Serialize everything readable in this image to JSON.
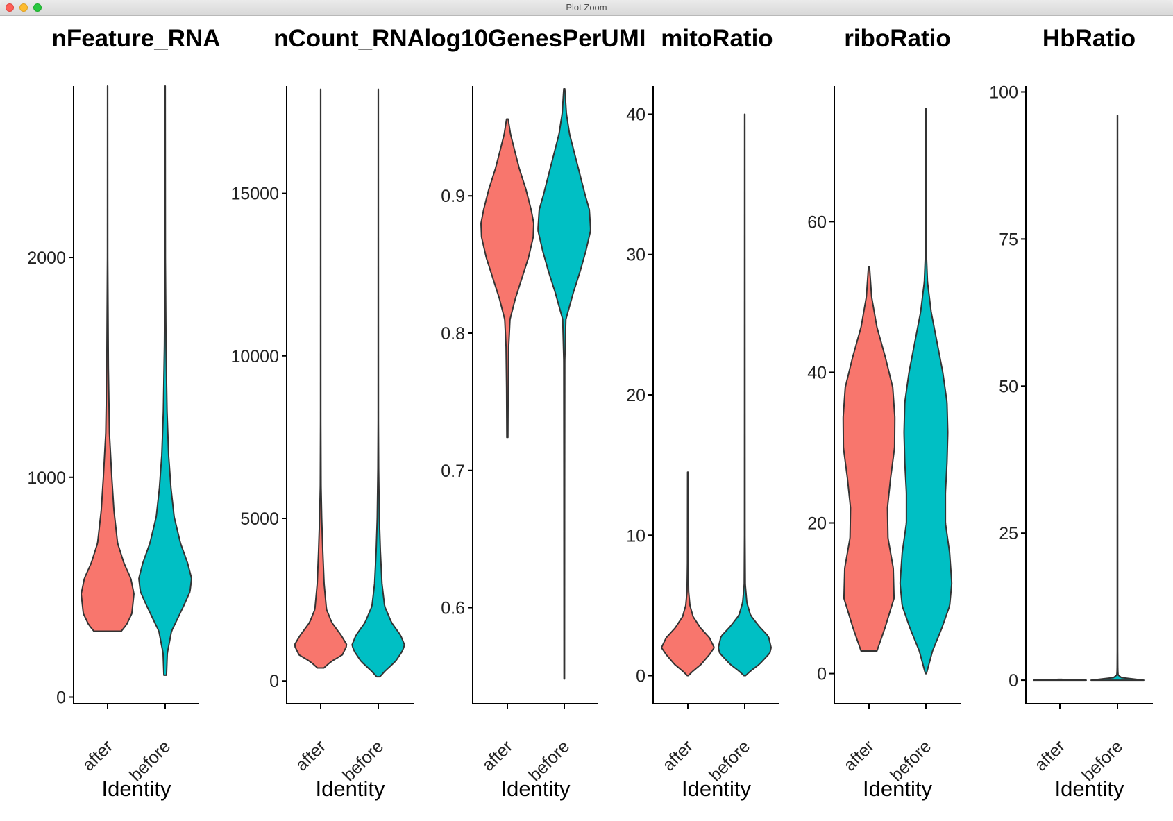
{
  "window": {
    "title": "Plot Zoom"
  },
  "theme": {
    "after_color": "#F8766D",
    "before_color": "#00BFC4",
    "outline_color": "#333333"
  },
  "chart_data": [
    {
      "type": "violin",
      "title": "nFeature_RNA",
      "xlabel": "Identity",
      "categories": [
        "after",
        "before"
      ],
      "ylim": [
        -30,
        2780
      ],
      "yticks": [
        0,
        1000,
        2000
      ],
      "series": [
        {
          "name": "after",
          "min": 300,
          "max": 2780,
          "density_profile": [
            [
              300,
              0.52
            ],
            [
              330,
              0.72
            ],
            [
              380,
              0.92
            ],
            [
              470,
              1.0
            ],
            [
              540,
              0.88
            ],
            [
              610,
              0.62
            ],
            [
              700,
              0.38
            ],
            [
              850,
              0.24
            ],
            [
              1000,
              0.16
            ],
            [
              1200,
              0.07
            ],
            [
              1500,
              0.03
            ],
            [
              2000,
              0.006
            ],
            [
              2780,
              0.003
            ]
          ]
        },
        {
          "name": "before",
          "min": 100,
          "max": 2780,
          "density_profile": [
            [
              100,
              0.05
            ],
            [
              200,
              0.08
            ],
            [
              300,
              0.24
            ],
            [
              350,
              0.44
            ],
            [
              420,
              0.72
            ],
            [
              480,
              0.94
            ],
            [
              540,
              1.0
            ],
            [
              610,
              0.85
            ],
            [
              700,
              0.58
            ],
            [
              820,
              0.34
            ],
            [
              950,
              0.22
            ],
            [
              1100,
              0.13
            ],
            [
              1300,
              0.07
            ],
            [
              1600,
              0.03
            ],
            [
              2000,
              0.008
            ],
            [
              2780,
              0.003
            ]
          ]
        }
      ]
    },
    {
      "type": "violin",
      "title": "nCount_RNA",
      "xlabel": "Identity",
      "categories": [
        "after",
        "before"
      ],
      "ylim": [
        -700,
        18300
      ],
      "yticks": [
        0,
        5000,
        10000,
        15000
      ],
      "series": [
        {
          "name": "after",
          "min": 400,
          "max": 18200,
          "density_profile": [
            [
              400,
              0.12
            ],
            [
              600,
              0.4
            ],
            [
              800,
              0.82
            ],
            [
              1100,
              1.0
            ],
            [
              1400,
              0.78
            ],
            [
              1800,
              0.42
            ],
            [
              2200,
              0.22
            ],
            [
              3000,
              0.13
            ],
            [
              4000,
              0.08
            ],
            [
              5000,
              0.04
            ],
            [
              6000,
              0.015
            ],
            [
              8000,
              0.006
            ],
            [
              18200,
              0.003
            ]
          ]
        },
        {
          "name": "before",
          "min": 130,
          "max": 18200,
          "density_profile": [
            [
              130,
              0.06
            ],
            [
              300,
              0.25
            ],
            [
              600,
              0.65
            ],
            [
              900,
              0.9
            ],
            [
              1100,
              1.0
            ],
            [
              1400,
              0.85
            ],
            [
              1800,
              0.5
            ],
            [
              2300,
              0.24
            ],
            [
              3000,
              0.14
            ],
            [
              4000,
              0.08
            ],
            [
              5000,
              0.04
            ],
            [
              6500,
              0.015
            ],
            [
              8000,
              0.006
            ],
            [
              18200,
              0.003
            ]
          ]
        }
      ]
    },
    {
      "type": "violin",
      "title": "log10GenesPerUMI",
      "xlabel": "Identity",
      "categories": [
        "after",
        "before"
      ],
      "ylim": [
        0.53,
        0.98
      ],
      "yticks": [
        0.6,
        0.7,
        0.8,
        0.9
      ],
      "series": [
        {
          "name": "after",
          "min": 0.724,
          "max": 0.956,
          "density_profile": [
            [
              0.724,
              0.02
            ],
            [
              0.76,
              0.03
            ],
            [
              0.79,
              0.05
            ],
            [
              0.81,
              0.1
            ],
            [
              0.825,
              0.3
            ],
            [
              0.84,
              0.55
            ],
            [
              0.855,
              0.8
            ],
            [
              0.87,
              0.98
            ],
            [
              0.88,
              1.0
            ],
            [
              0.89,
              0.9
            ],
            [
              0.905,
              0.7
            ],
            [
              0.92,
              0.45
            ],
            [
              0.935,
              0.25
            ],
            [
              0.945,
              0.12
            ],
            [
              0.956,
              0.03
            ]
          ]
        },
        {
          "name": "before",
          "min": 0.548,
          "max": 0.978,
          "density_profile": [
            [
              0.548,
              0.01
            ],
            [
              0.7,
              0.015
            ],
            [
              0.78,
              0.02
            ],
            [
              0.81,
              0.06
            ],
            [
              0.83,
              0.35
            ],
            [
              0.845,
              0.6
            ],
            [
              0.86,
              0.82
            ],
            [
              0.875,
              1.0
            ],
            [
              0.89,
              0.95
            ],
            [
              0.9,
              0.8
            ],
            [
              0.915,
              0.6
            ],
            [
              0.93,
              0.4
            ],
            [
              0.945,
              0.2
            ],
            [
              0.96,
              0.08
            ],
            [
              0.978,
              0.02
            ]
          ]
        }
      ]
    },
    {
      "type": "violin",
      "title": "mitoRatio",
      "xlabel": "Identity",
      "categories": [
        "after",
        "before"
      ],
      "ylim": [
        -2,
        42
      ],
      "yticks": [
        0,
        10,
        20,
        30,
        40
      ],
      "series": [
        {
          "name": "after",
          "min": 0,
          "max": 14.5,
          "density_profile": [
            [
              0,
              0.02
            ],
            [
              0.3,
              0.18
            ],
            [
              0.8,
              0.5
            ],
            [
              1.5,
              0.82
            ],
            [
              2.0,
              1.0
            ],
            [
              2.7,
              0.82
            ],
            [
              3.4,
              0.48
            ],
            [
              4.2,
              0.2
            ],
            [
              5,
              0.08
            ],
            [
              6,
              0.03
            ],
            [
              8,
              0.015
            ],
            [
              14.5,
              0.01
            ]
          ]
        },
        {
          "name": "before",
          "min": 0,
          "max": 40,
          "density_profile": [
            [
              0,
              0.03
            ],
            [
              0.3,
              0.2
            ],
            [
              0.8,
              0.55
            ],
            [
              1.6,
              0.95
            ],
            [
              2.0,
              1.0
            ],
            [
              2.8,
              0.9
            ],
            [
              3.5,
              0.55
            ],
            [
              4.3,
              0.22
            ],
            [
              5.2,
              0.08
            ],
            [
              6.5,
              0.02
            ],
            [
              10,
              0.01
            ],
            [
              40,
              0.005
            ]
          ]
        }
      ]
    },
    {
      "type": "violin",
      "title": "riboRatio",
      "xlabel": "Identity",
      "categories": [
        "after",
        "before"
      ],
      "ylim": [
        -4,
        78
      ],
      "yticks": [
        0,
        20,
        40,
        60
      ],
      "series": [
        {
          "name": "after",
          "min": 3,
          "max": 54,
          "density_profile": [
            [
              3,
              0.3
            ],
            [
              6,
              0.6
            ],
            [
              10,
              0.95
            ],
            [
              14,
              0.92
            ],
            [
              18,
              0.72
            ],
            [
              22,
              0.7
            ],
            [
              26,
              0.82
            ],
            [
              30,
              0.97
            ],
            [
              34,
              0.98
            ],
            [
              38,
              0.9
            ],
            [
              42,
              0.62
            ],
            [
              46,
              0.3
            ],
            [
              50,
              0.1
            ],
            [
              54,
              0.02
            ]
          ]
        },
        {
          "name": "before",
          "min": 0,
          "max": 75,
          "density_profile": [
            [
              0,
              0.02
            ],
            [
              3,
              0.25
            ],
            [
              6,
              0.6
            ],
            [
              9,
              0.9
            ],
            [
              12,
              0.98
            ],
            [
              16,
              0.9
            ],
            [
              20,
              0.74
            ],
            [
              24,
              0.74
            ],
            [
              28,
              0.8
            ],
            [
              32,
              0.83
            ],
            [
              36,
              0.8
            ],
            [
              40,
              0.64
            ],
            [
              44,
              0.42
            ],
            [
              48,
              0.2
            ],
            [
              52,
              0.06
            ],
            [
              56,
              0.015
            ],
            [
              65,
              0.008
            ],
            [
              75,
              0.005
            ]
          ]
        }
      ]
    },
    {
      "type": "violin",
      "title": "HbRatio",
      "xlabel": "Identity",
      "categories": [
        "after",
        "before"
      ],
      "ylim": [
        -4,
        101
      ],
      "yticks": [
        0,
        25,
        50,
        75,
        100
      ],
      "series": [
        {
          "name": "after",
          "min": 0,
          "max": 0.15,
          "density_profile": [
            [
              0,
              1.0
            ],
            [
              0.05,
              0.9
            ],
            [
              0.1,
              0.3
            ],
            [
              0.15,
              0.01
            ]
          ]
        },
        {
          "name": "before",
          "min": 0,
          "max": 96,
          "density_profile": [
            [
              0,
              1.0
            ],
            [
              0.15,
              0.7
            ],
            [
              0.3,
              0.25
            ],
            [
              0.6,
              0.04
            ],
            [
              1,
              0.02
            ],
            [
              2,
              0.012
            ],
            [
              5,
              0.008
            ],
            [
              96,
              0.005
            ]
          ]
        }
      ]
    }
  ]
}
